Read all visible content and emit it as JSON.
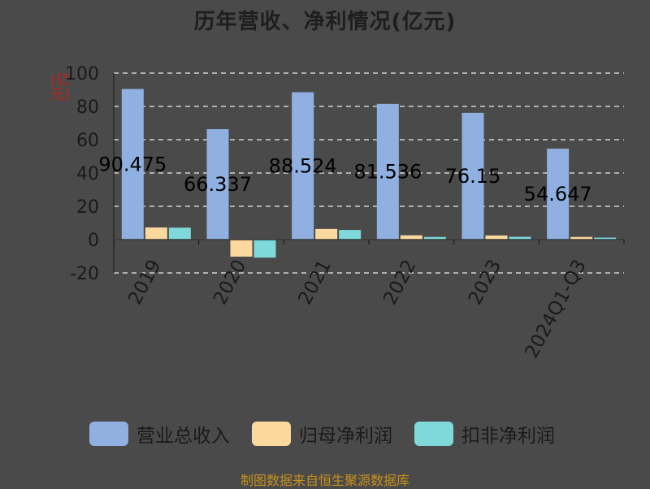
{
  "chart_data": {
    "type": "bar",
    "title": "历年营收、净利情况(亿元)",
    "yunit": "(亿元)",
    "categories": [
      "2019",
      "2020",
      "2021",
      "2022",
      "2023",
      "2024Q1-Q3"
    ],
    "series": [
      {
        "name": "营业总收入",
        "color": "#8fb0e0",
        "values": [
          90.475,
          66.337,
          88.524,
          81.536,
          76.15,
          54.647
        ]
      },
      {
        "name": "归母净利润",
        "color": "#fbd89e",
        "values": [
          7.3,
          -10.2,
          6.4,
          2.6,
          2.5,
          1.6
        ]
      },
      {
        "name": "扣非净利润",
        "color": "#7fd8da",
        "values": [
          7.2,
          -10.8,
          5.8,
          1.6,
          1.7,
          1.2
        ]
      }
    ],
    "data_labels": [
      "90.475",
      "66.337",
      "88.524",
      "81.536",
      "76.15",
      "54.647"
    ],
    "ylim": [
      -20,
      100
    ],
    "yticks": [
      -20,
      0,
      20,
      40,
      60,
      80,
      100
    ],
    "ytick_labels": [
      "-20",
      "0",
      "20",
      "40",
      "60",
      "80",
      "100"
    ],
    "grid": true,
    "legend_position": "bottom"
  },
  "footer": "制图数据来自恒生聚源数据库"
}
